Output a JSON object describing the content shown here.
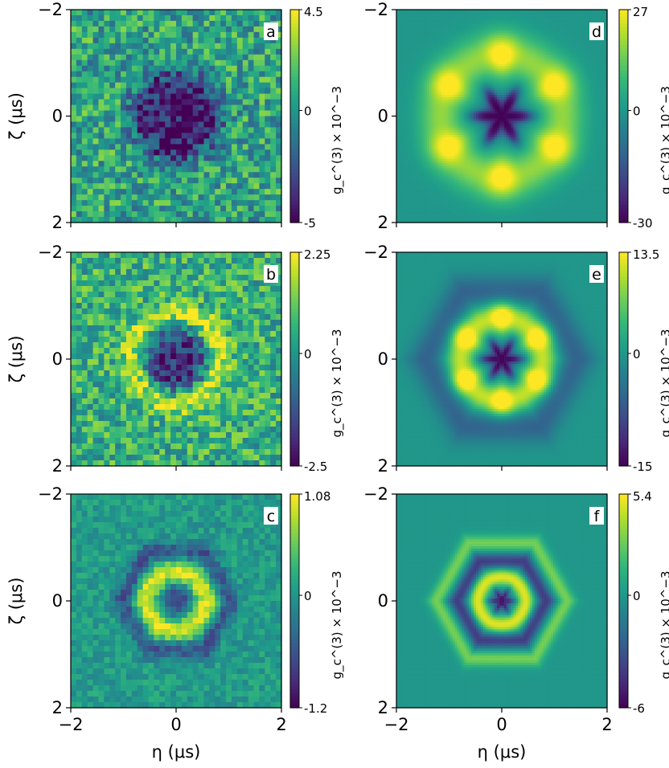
{
  "chart_data": [
    {
      "panel": "a",
      "type": "heatmap",
      "kind": "measured",
      "letter": "a",
      "xlabel": "",
      "ylabel": "ζ (μs)",
      "xlim": [
        -2,
        2
      ],
      "ylim": [
        -2,
        2
      ],
      "xticks": [],
      "yticks": [
        "−2",
        "0",
        "2"
      ],
      "colorbar": {
        "min": -5,
        "max": 4.5,
        "labels": [
          "4.5",
          "0",
          "-5"
        ],
        "label": "g_c^(3) × 10^−3"
      },
      "pattern": {
        "grid": 38,
        "noise": 0.9,
        "baseline": 0.55,
        "features": [
          {
            "shape": "disk",
            "radius": 0.85,
            "value": -5,
            "width": 0.1
          }
        ]
      }
    },
    {
      "panel": "b",
      "type": "heatmap",
      "kind": "measured",
      "letter": "b",
      "xlabel": "",
      "ylabel": "ζ (μs)",
      "xlim": [
        -2,
        2
      ],
      "ylim": [
        -2,
        2
      ],
      "xticks": [],
      "yticks": [
        "−2",
        "0",
        "2"
      ],
      "colorbar": {
        "min": -2.5,
        "max": 2.25,
        "labels": [
          "2.25",
          "0",
          "-2.5"
        ],
        "label": "g_c^(3) × 10^−3"
      },
      "pattern": {
        "grid": 38,
        "noise": 0.8,
        "baseline": 0.5,
        "features": [
          {
            "shape": "disk",
            "radius": 0.55,
            "value": -2.5,
            "width": 0.1
          },
          {
            "shape": "ring",
            "radius": 0.85,
            "value": 1.4,
            "width": 0.15
          }
        ]
      }
    },
    {
      "panel": "c",
      "type": "heatmap",
      "kind": "measured",
      "letter": "c",
      "xlabel": "η (μs)",
      "ylabel": "ζ (μs)",
      "xlim": [
        -2,
        2
      ],
      "ylim": [
        -2,
        2
      ],
      "xticks": [
        "−2",
        "0",
        "2"
      ],
      "yticks": [
        "−2",
        "0",
        "2"
      ],
      "colorbar": {
        "min": -1.2,
        "max": 1.08,
        "labels": [
          "1.08",
          "0",
          "-1.2"
        ],
        "label": "g_c^(3) × 10^−3"
      },
      "pattern": {
        "grid": 38,
        "noise": 0.35,
        "baseline": 0.05,
        "features": [
          {
            "shape": "disk",
            "radius": 0.25,
            "value": -1.0,
            "width": 0.1
          },
          {
            "shape": "ring",
            "radius": 0.55,
            "value": 1.0,
            "width": 0.16
          },
          {
            "shape": "hexring",
            "radius": 1.05,
            "value": -0.7,
            "width": 0.14
          }
        ]
      }
    },
    {
      "panel": "d",
      "type": "heatmap",
      "kind": "simulated",
      "letter": "d",
      "xlabel": "",
      "ylabel": "",
      "xlim": [
        -2,
        2
      ],
      "ylim": [
        -2,
        2
      ],
      "xticks": [],
      "yticks": [
        "−2",
        "0",
        "2"
      ],
      "colorbar": {
        "min": -30,
        "max": 27,
        "labels": [
          "27",
          "0",
          "-30"
        ],
        "label": "g_c^(3) × 10^−3"
      },
      "pattern": {
        "grid": 90,
        "noise": 0,
        "baseline": 0,
        "features": [
          {
            "shape": "star",
            "radius": 0.55,
            "value": -30,
            "width": 0.08
          },
          {
            "shape": "spots",
            "radius": 1.15,
            "value": 22,
            "width": 0.28
          },
          {
            "shape": "ring",
            "radius": 1.15,
            "value": 10,
            "width": 0.3
          }
        ]
      }
    },
    {
      "panel": "e",
      "type": "heatmap",
      "kind": "simulated",
      "letter": "e",
      "xlabel": "",
      "ylabel": "",
      "xlim": [
        -2,
        2
      ],
      "ylim": [
        -2,
        2
      ],
      "xticks": [],
      "yticks": [
        "−2",
        "0",
        "2"
      ],
      "colorbar": {
        "min": -15,
        "max": 13.5,
        "labels": [
          "13.5",
          "0",
          "-15"
        ],
        "label": "g_c^(3) × 10^−3"
      },
      "pattern": {
        "grid": 90,
        "noise": 0,
        "baseline": 0,
        "features": [
          {
            "shape": "star",
            "radius": 0.38,
            "value": -15,
            "width": 0.07
          },
          {
            "shape": "spots",
            "radius": 0.78,
            "value": 12,
            "width": 0.2
          },
          {
            "shape": "ring",
            "radius": 0.78,
            "value": 7,
            "width": 0.2
          },
          {
            "shape": "hexring",
            "radius": 1.45,
            "value": -6,
            "width": 0.25
          }
        ]
      }
    },
    {
      "panel": "f",
      "type": "heatmap",
      "kind": "simulated",
      "letter": "f",
      "xlabel": "η (μs)",
      "ylabel": "",
      "xlim": [
        -2,
        2
      ],
      "ylim": [
        -2,
        2
      ],
      "xticks": [
        "−2",
        "0",
        "2"
      ],
      "yticks": [
        "−2",
        "0",
        "2"
      ],
      "colorbar": {
        "min": -6,
        "max": 5.4,
        "labels": [
          "5.4",
          "0",
          "-6"
        ],
        "label": "g_c^(3) × 10^−3"
      },
      "pattern": {
        "grid": 90,
        "noise": 0,
        "baseline": 0,
        "features": [
          {
            "shape": "star",
            "radius": 0.22,
            "value": -6,
            "width": 0.06
          },
          {
            "shape": "ring",
            "radius": 0.45,
            "value": 5,
            "width": 0.12
          },
          {
            "shape": "hexring",
            "radius": 0.85,
            "value": -4,
            "width": 0.12
          },
          {
            "shape": "hexring",
            "radius": 1.25,
            "value": 3,
            "width": 0.12
          }
        ]
      }
    }
  ]
}
